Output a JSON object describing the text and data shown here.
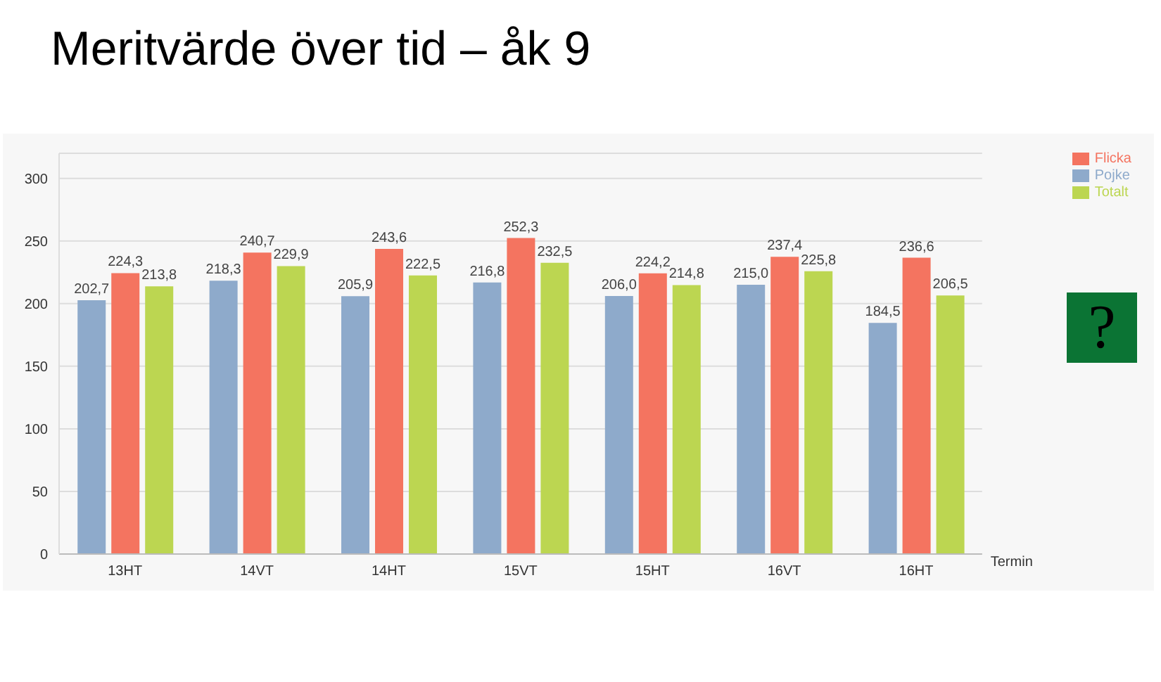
{
  "chart_data": {
    "type": "bar",
    "title": "Meritvärde över tid – åk 9",
    "xlabel": "Termin",
    "categories": [
      "13HT",
      "14VT",
      "14HT",
      "15VT",
      "15HT",
      "16VT",
      "16HT"
    ],
    "series": [
      {
        "name": "Pojke",
        "color": "#8eaacb",
        "values": [
          202.7,
          218.3,
          205.9,
          216.8,
          206.0,
          215.0,
          184.5
        ],
        "value_labels": [
          "202,7",
          "218,3",
          "205,9",
          "216,8",
          "206,0",
          "215,0",
          "184,5"
        ]
      },
      {
        "name": "Flicka",
        "color": "#f47460",
        "values": [
          224.3,
          240.7,
          243.6,
          252.3,
          224.2,
          237.4,
          236.6
        ],
        "value_labels": [
          "224,3",
          "240,7",
          "243,6",
          "252,3",
          "224,2",
          "237,4",
          "236,6"
        ]
      },
      {
        "name": "Totalt",
        "color": "#bcd651",
        "values": [
          213.8,
          229.9,
          222.5,
          232.5,
          214.8,
          225.8,
          206.5
        ],
        "value_labels": [
          "213,8",
          "229,9",
          "222,5",
          "232,5",
          "214,8",
          "225,8",
          "206,5"
        ]
      }
    ],
    "ylim": [
      0,
      320
    ],
    "yticks": [
      0,
      50,
      100,
      150,
      200,
      250,
      300
    ],
    "grid": "y",
    "legend": "top right",
    "annotations": [
      "?"
    ]
  }
}
